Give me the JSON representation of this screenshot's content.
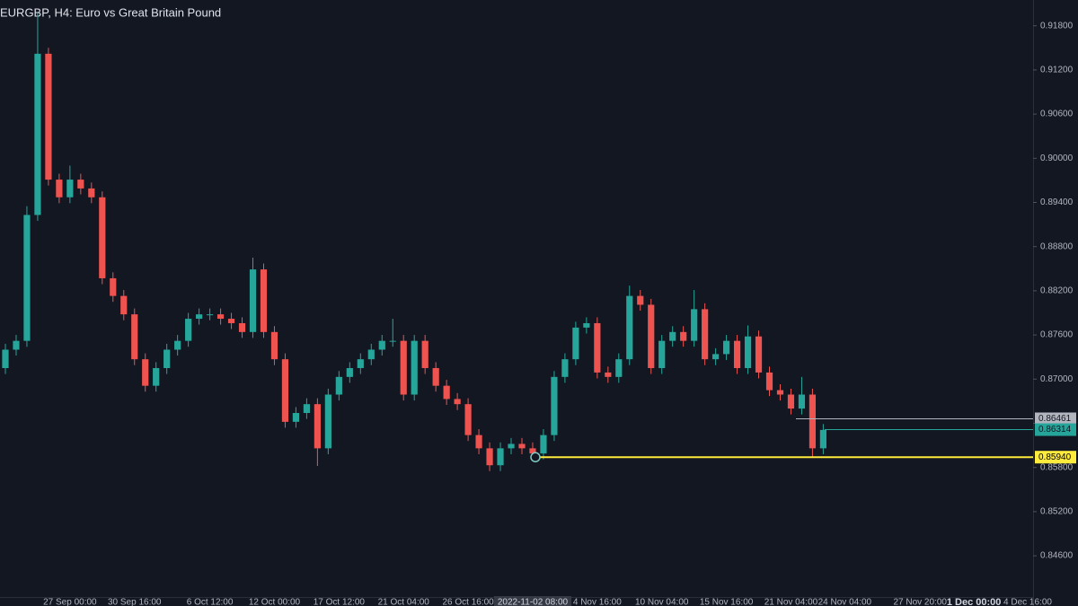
{
  "chart_data": {
    "type": "candlestick",
    "title": "EURGBP, H4: Euro vs Great Britain Pound",
    "categories": [
      null,
      null,
      null,
      null,
      null,
      null,
      "27 Sep 00:00",
      null,
      null,
      null,
      null,
      null,
      "30 Sep 16:00",
      null,
      null,
      null,
      null,
      null,
      null,
      "6 Oct 12:00",
      null,
      null,
      null,
      null,
      null,
      "12 Oct 00:00",
      null,
      null,
      null,
      null,
      null,
      "17 Oct 12:00",
      null,
      null,
      null,
      null,
      null,
      "21 Oct 04:00",
      null,
      null,
      null,
      null,
      null,
      "26 Oct 16:00",
      null,
      null,
      null,
      null,
      null,
      "2022-11-02 08:00",
      null,
      null,
      null,
      null,
      null,
      "4 Nov 16:00",
      null,
      null,
      null,
      null,
      null,
      "10 Nov 04:00",
      null,
      null,
      null,
      null,
      null,
      "15 Nov 16:00",
      null,
      null,
      null,
      null,
      null,
      "21 Nov 04:00",
      null,
      null,
      null,
      null,
      "24 Nov 04:00",
      null,
      null,
      null,
      null,
      null,
      null,
      "27 Nov 20:00",
      null,
      null,
      null,
      null,
      "1 Dec 00:00",
      null,
      null,
      null,
      null,
      "4 Dec 16:00"
    ],
    "open": [
      0.8715,
      0.874,
      0.8752,
      0.8923,
      0.9142,
      0.8971,
      0.8947,
      0.8971,
      0.8959,
      0.8947,
      0.8837,
      0.8813,
      0.8788,
      0.8727,
      0.8691,
      0.8715,
      0.874,
      0.8752,
      0.8782,
      0.8788,
      0.8788,
      0.8782,
      0.8776,
      0.8764,
      0.8849,
      0.8764,
      0.8727,
      0.8642,
      0.8654,
      0.8666,
      0.8606,
      0.8679,
      0.8703,
      0.8715,
      0.8727,
      0.874,
      0.8752,
      0.8752,
      0.8679,
      0.8752,
      0.8715,
      0.8691,
      0.8673,
      0.8666,
      0.8624,
      0.8606,
      0.8583,
      0.8606,
      0.8612,
      0.8606,
      0.8599,
      0.8624,
      0.8703,
      0.8727,
      0.877,
      0.8776,
      0.8709,
      0.8703,
      0.8727,
      0.8813,
      0.8801,
      0.8715,
      0.8752,
      0.8764,
      0.8752,
      0.8795,
      0.8727,
      0.8734,
      0.8752,
      0.8715,
      0.8758,
      0.8709,
      0.8685,
      0.8679,
      0.866,
      0.8679,
      0.8606,
      null,
      null,
      null,
      null,
      null,
      null,
      null,
      null,
      null,
      null,
      null,
      null,
      null,
      null,
      null,
      null,
      null,
      null,
      null
    ],
    "high": [
      0.8748,
      0.876,
      0.8935,
      0.9197,
      0.915,
      0.8979,
      0.899,
      0.8979,
      0.8967,
      0.8955,
      0.8845,
      0.8821,
      0.8796,
      0.8735,
      0.8723,
      0.8748,
      0.876,
      0.879,
      0.8796,
      0.8796,
      0.8796,
      0.879,
      0.8784,
      0.8865,
      0.8857,
      0.8772,
      0.8735,
      0.8662,
      0.8674,
      0.8674,
      0.8687,
      0.8711,
      0.8723,
      0.8735,
      0.8748,
      0.876,
      0.8782,
      0.876,
      0.876,
      0.876,
      0.8723,
      0.8699,
      0.8681,
      0.8674,
      0.8632,
      0.8614,
      0.8614,
      0.862,
      0.862,
      0.8614,
      0.8632,
      0.8711,
      0.8735,
      0.8778,
      0.8784,
      0.8784,
      0.8717,
      0.8735,
      0.8827,
      0.8821,
      0.8809,
      0.876,
      0.8772,
      0.8772,
      0.8821,
      0.8803,
      0.8742,
      0.876,
      0.876,
      0.8773,
      0.8766,
      0.8717,
      0.8693,
      0.8687,
      0.8703,
      0.8687,
      0.8639,
      null,
      null,
      null,
      null,
      null,
      null,
      null,
      null,
      null,
      null,
      null,
      null,
      null,
      null,
      null,
      null,
      null,
      null,
      null
    ],
    "low": [
      0.8707,
      0.8732,
      0.8744,
      0.8915,
      0.8963,
      0.8939,
      0.8939,
      0.8951,
      0.8939,
      0.8829,
      0.8805,
      0.878,
      0.8719,
      0.8683,
      0.8683,
      0.8707,
      0.8732,
      0.8744,
      0.8774,
      0.878,
      0.8774,
      0.8768,
      0.8756,
      0.8756,
      0.8756,
      0.8719,
      0.8634,
      0.8634,
      0.8646,
      0.8582,
      0.8598,
      0.8671,
      0.8695,
      0.8707,
      0.8719,
      0.8732,
      0.8744,
      0.8671,
      0.8671,
      0.8707,
      0.8683,
      0.8665,
      0.8658,
      0.8616,
      0.8598,
      0.8575,
      0.8575,
      0.8598,
      0.8598,
      0.8591,
      0.8591,
      0.8616,
      0.8695,
      0.8719,
      0.8762,
      0.8701,
      0.8695,
      0.8695,
      0.8719,
      0.8793,
      0.8707,
      0.8707,
      0.8744,
      0.8744,
      0.8744,
      0.8719,
      0.8719,
      0.8726,
      0.8707,
      0.8707,
      0.8701,
      0.8677,
      0.8671,
      0.8652,
      0.8652,
      0.8594,
      0.8598,
      null,
      null,
      null,
      null,
      null,
      null,
      null,
      null,
      null,
      null,
      null,
      null,
      null,
      null,
      null,
      null,
      null,
      null,
      null
    ],
    "close": [
      0.874,
      0.8752,
      0.8923,
      0.9142,
      0.8971,
      0.8947,
      0.8971,
      0.8959,
      0.8947,
      0.8837,
      0.8813,
      0.8788,
      0.8727,
      0.8691,
      0.8715,
      0.874,
      0.8752,
      0.8782,
      0.8788,
      0.8788,
      0.8782,
      0.8776,
      0.8764,
      0.8849,
      0.8764,
      0.8727,
      0.8642,
      0.8654,
      0.8666,
      0.8606,
      0.8679,
      0.8703,
      0.8715,
      0.8727,
      0.874,
      0.8752,
      0.8752,
      0.8679,
      0.8752,
      0.8715,
      0.8691,
      0.8673,
      0.8666,
      0.8624,
      0.8606,
      0.8583,
      0.8606,
      0.8612,
      0.8606,
      0.8599,
      0.8624,
      0.8703,
      0.8727,
      0.877,
      0.8776,
      0.8709,
      0.8703,
      0.8727,
      0.8813,
      0.8801,
      0.8715,
      0.8752,
      0.8764,
      0.8752,
      0.8795,
      0.8727,
      0.8734,
      0.8752,
      0.8715,
      0.8758,
      0.8709,
      0.8685,
      0.8679,
      0.866,
      0.8679,
      0.8606,
      0.8631,
      null,
      null,
      null,
      null,
      null,
      null,
      null,
      null,
      null,
      null,
      null,
      null,
      null,
      null,
      null,
      null,
      null,
      null,
      null
    ],
    "up_color": "#26a69a",
    "down_color": "#ef5350",
    "ylim": [
      0.8404,
      0.9215
    ],
    "yticks": [
      {
        "value": 0.918,
        "label": "0.91800"
      },
      {
        "value": 0.912,
        "label": "0.91200"
      },
      {
        "value": 0.906,
        "label": "0.90600"
      },
      {
        "value": 0.9,
        "label": "0.90000"
      },
      {
        "value": 0.894,
        "label": "0.89400"
      },
      {
        "value": 0.888,
        "label": "0.88800"
      },
      {
        "value": 0.882,
        "label": "0.88200"
      },
      {
        "value": 0.876,
        "label": "0.87600"
      },
      {
        "value": 0.87,
        "label": "0.87000"
      },
      {
        "value": 0.864,
        "label": "0.86400"
      },
      {
        "value": 0.858,
        "label": "0.85800"
      },
      {
        "value": 0.852,
        "label": "0.85200"
      },
      {
        "value": 0.846,
        "label": "0.84600"
      }
    ],
    "price_lines": [
      {
        "value": 0.86461,
        "label": "0.86461",
        "color": "#b2b5be"
      },
      {
        "value": 0.86314,
        "label": "0.86314",
        "color": "#26a69a"
      },
      {
        "value": 0.8594,
        "label": "0.85940",
        "color": "#ffeb3b"
      }
    ]
  }
}
